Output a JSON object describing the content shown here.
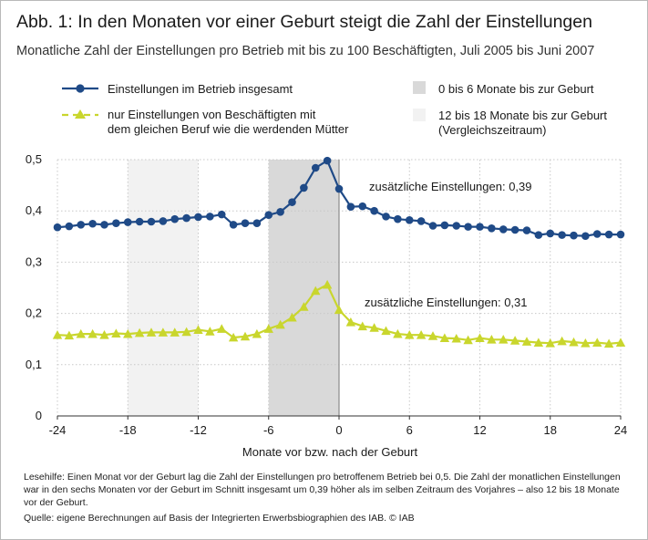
{
  "header": {
    "title": "Abb. 1: In den Monaten vor einer Geburt steigt die Zahl der Einstellungen",
    "subtitle": "Monatliche Zahl der Einstellungen pro Betrieb mit bis zu 100 Beschäftigten, Juli 2005 bis Juni 2007"
  },
  "chart_data": {
    "type": "line",
    "xlabel": "Monate vor bzw. nach der Geburt",
    "ylabel": "",
    "xlim": [
      -24,
      24
    ],
    "ylim": [
      0,
      0.5
    ],
    "xticks": [
      "-24",
      "-18",
      "-12",
      "-6",
      "0",
      "6",
      "12",
      "18",
      "24"
    ],
    "xtick_values": [
      -24,
      -18,
      -12,
      -6,
      0,
      6,
      12,
      18,
      24
    ],
    "yticks": [
      "0",
      "0,1",
      "0,2",
      "0,3",
      "0,4",
      "0,5"
    ],
    "ytick_values": [
      0,
      0.1,
      0.2,
      0.3,
      0.4,
      0.5
    ],
    "x": [
      -24,
      -23,
      -22,
      -21,
      -20,
      -19,
      -18,
      -17,
      -16,
      -15,
      -14,
      -13,
      -12,
      -11,
      -10,
      -9,
      -8,
      -7,
      -6,
      -5,
      -4,
      -3,
      -2,
      -1,
      0,
      1,
      2,
      3,
      4,
      5,
      6,
      7,
      8,
      9,
      10,
      11,
      12,
      13,
      14,
      15,
      16,
      17,
      18,
      19,
      20,
      21,
      22,
      23,
      24
    ],
    "series": [
      {
        "name": "Einstellungen im Betrieb insgesamt",
        "color": "#1f4a87",
        "marker": "circle",
        "values": [
          0.368,
          0.37,
          0.373,
          0.375,
          0.373,
          0.376,
          0.378,
          0.379,
          0.379,
          0.38,
          0.384,
          0.386,
          0.388,
          0.389,
          0.393,
          0.373,
          0.376,
          0.376,
          0.392,
          0.398,
          0.417,
          0.445,
          0.484,
          0.498,
          0.443,
          0.408,
          0.409,
          0.4,
          0.389,
          0.384,
          0.382,
          0.38,
          0.371,
          0.372,
          0.371,
          0.369,
          0.369,
          0.366,
          0.364,
          0.363,
          0.362,
          0.353,
          0.356,
          0.353,
          0.352,
          0.351,
          0.355,
          0.354,
          0.354
        ]
      },
      {
        "name": "nur Einstellungen von Beschäftigten mit dem gleichen Beruf wie die werdenden Mütter",
        "color": "#c9d62d",
        "marker": "triangle",
        "values": [
          0.158,
          0.157,
          0.16,
          0.16,
          0.158,
          0.161,
          0.16,
          0.162,
          0.163,
          0.163,
          0.163,
          0.164,
          0.168,
          0.165,
          0.17,
          0.153,
          0.155,
          0.16,
          0.17,
          0.178,
          0.192,
          0.213,
          0.244,
          0.256,
          0.207,
          0.183,
          0.175,
          0.172,
          0.166,
          0.16,
          0.158,
          0.158,
          0.156,
          0.152,
          0.151,
          0.148,
          0.152,
          0.149,
          0.149,
          0.147,
          0.145,
          0.143,
          0.142,
          0.146,
          0.144,
          0.142,
          0.143,
          0.141,
          0.143
        ]
      }
    ],
    "shaded_ranges": [
      {
        "from": -6,
        "to": 0,
        "label": "0 bis 6 Monate bis zur Geburt",
        "color": "#d9d9d9"
      },
      {
        "from": -18,
        "to": -12,
        "label": "12 bis 18 Monate bis zur Geburt (Vergleichszeitraum)",
        "color": "#f2f2f2"
      }
    ],
    "annotations": [
      {
        "text": "zusätzliche Einstellungen: 0,39",
        "series": 0
      },
      {
        "text": "zusätzliche Einstellungen: 0,31",
        "series": 1
      }
    ],
    "legend": {
      "position": "top",
      "series1_label": "Einstellungen im Betrieb insgesamt",
      "series2_label_line1": "nur Einstellungen von Beschäftigten mit",
      "series2_label_line2": "dem gleichen Beruf wie die werdenden Mütter",
      "shade1_label": "0 bis 6 Monate bis zur Geburt",
      "shade2_label_line1": "12 bis 18 Monate bis zur Geburt",
      "shade2_label_line2": "(Vergleichszeitraum)"
    },
    "grid": true
  },
  "notes": {
    "reading_aid": "Lesehilfe: Einen Monat vor der Geburt lag die Zahl der Einstellungen pro betroffenem Betrieb bei 0,5. Die Zahl der monatlichen Einstellungen war in den sechs Monaten vor der Geburt im Schnitt insgesamt um 0,39 höher als im selben Zeitraum des Vorjahres – also 12 bis 18 Monate vor der Geburt.",
    "source": "Quelle: eigene Berechnungen auf Basis der Integrierten Erwerbsbiographien des IAB. © IAB"
  }
}
